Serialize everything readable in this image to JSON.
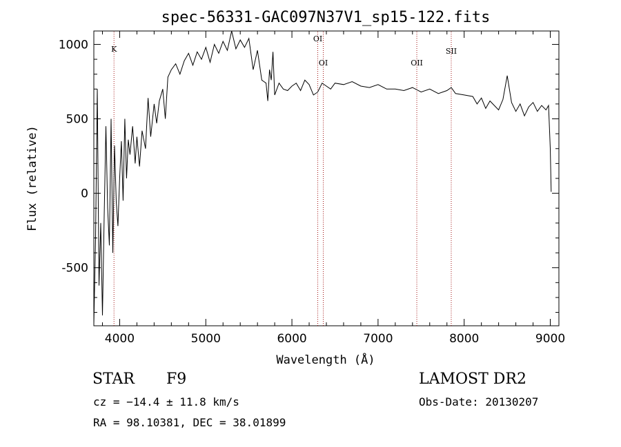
{
  "chart_data": {
    "type": "line",
    "title": "spec-56331-GAC097N37V1_sp15-122.fits",
    "xlabel": "Wavelength (Å)",
    "ylabel": "Flux (relative)",
    "xlim": [
      3700,
      9100
    ],
    "ylim": [
      -890,
      1090
    ],
    "xticks": [
      4000,
      5000,
      6000,
      7000,
      8000,
      9000
    ],
    "yticks": [
      -500,
      0,
      500,
      1000
    ],
    "grid": false,
    "series": [
      {
        "x": [
          3700,
          3720,
          3740,
          3760,
          3780,
          3800,
          3820,
          3840,
          3860,
          3880,
          3900,
          3920,
          3940,
          3960,
          3980,
          4000,
          4020,
          4040,
          4060,
          4080,
          4100,
          4120,
          4150,
          4180,
          4200,
          4230,
          4260,
          4300,
          4330,
          4360,
          4400,
          4430,
          4460,
          4500,
          4530,
          4560,
          4600,
          4650,
          4700,
          4750,
          4800,
          4850,
          4900,
          4950,
          5000,
          5050,
          5100,
          5150,
          5200,
          5250,
          5300,
          5350,
          5400,
          5450,
          5500,
          5550,
          5600,
          5650,
          5700,
          5720,
          5740,
          5760,
          5780,
          5800,
          5850,
          5900,
          5950,
          6000,
          6050,
          6100,
          6150,
          6200,
          6250,
          6300,
          6350,
          6400,
          6450,
          6500,
          6600,
          6700,
          6800,
          6900,
          7000,
          7100,
          7200,
          7300,
          7400,
          7500,
          7600,
          7700,
          7800,
          7850,
          7900,
          8000,
          8100,
          8150,
          8200,
          8250,
          8300,
          8400,
          8450,
          8500,
          8550,
          8600,
          8650,
          8700,
          8750,
          8800,
          8850,
          8900,
          8950,
          8980,
          9000,
          9010
        ],
        "y": [
          -880,
          -300,
          700,
          -620,
          -200,
          -820,
          -150,
          450,
          -100,
          -350,
          500,
          -400,
          320,
          -60,
          -220,
          100,
          350,
          -50,
          500,
          100,
          360,
          260,
          450,
          200,
          380,
          180,
          420,
          300,
          640,
          380,
          600,
          470,
          620,
          700,
          500,
          780,
          830,
          870,
          800,
          890,
          940,
          860,
          950,
          900,
          980,
          880,
          1000,
          940,
          1020,
          960,
          1090,
          970,
          1030,
          980,
          1040,
          830,
          960,
          760,
          740,
          620,
          830,
          760,
          950,
          660,
          740,
          700,
          690,
          720,
          740,
          690,
          760,
          730,
          660,
          680,
          740,
          720,
          700,
          740,
          730,
          750,
          720,
          710,
          730,
          700,
          700,
          690,
          710,
          680,
          700,
          670,
          690,
          710,
          670,
          660,
          650,
          600,
          640,
          570,
          620,
          560,
          630,
          790,
          610,
          550,
          600,
          520,
          580,
          610,
          550,
          590,
          560,
          590,
          300,
          10
        ]
      }
    ],
    "line_markers": [
      {
        "label": "K",
        "x": 3934
      },
      {
        "label": "OI",
        "x": 6300
      },
      {
        "label": "OI",
        "x": 6364
      },
      {
        "label": "OII",
        "x": 7450
      },
      {
        "label": "SII",
        "x": 7850
      }
    ]
  },
  "info": {
    "object_type": "STAR",
    "subclass": "F9",
    "survey": "LAMOST DR2",
    "cz": "cz = −14.4 ± 11.8 km/s",
    "obs_date": "Obs-Date: 20130207",
    "coords": "RA =  98.10381, DEC =  38.01899"
  }
}
